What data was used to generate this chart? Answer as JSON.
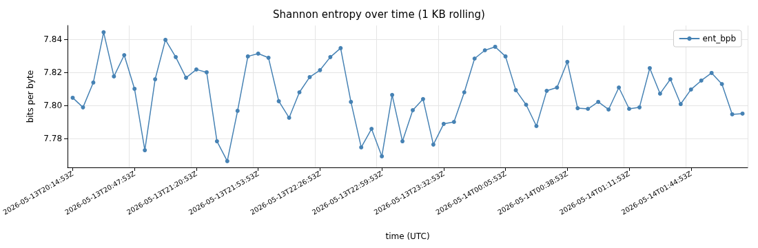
{
  "chart_data": {
    "type": "line",
    "title": "Shannon entropy over time (1 KB rolling)",
    "xlabel": "time (UTC)",
    "ylabel": "bits per byte",
    "categories": [
      "2026-05-13T20:14:53Z",
      null,
      null,
      null,
      null,
      null,
      "2026-05-13T20:47:53Z",
      null,
      null,
      null,
      null,
      null,
      "2026-05-13T21:20:53Z",
      null,
      null,
      null,
      null,
      null,
      "2026-05-13T21:53:53Z",
      null,
      null,
      null,
      null,
      null,
      "2026-05-13T22:26:53Z",
      null,
      null,
      null,
      null,
      null,
      "2026-05-13T22:59:53Z",
      null,
      null,
      null,
      null,
      null,
      "2026-05-13T23:32:53Z",
      null,
      null,
      null,
      null,
      null,
      "2026-05-14T00:05:53Z",
      null,
      null,
      null,
      null,
      null,
      "2026-05-14T00:38:53Z",
      null,
      null,
      null,
      null,
      null,
      "2026-05-14T01:11:53Z",
      null,
      null,
      null,
      null,
      null,
      "2026-05-14T01:44:53Z",
      null,
      null,
      null,
      null,
      null
    ],
    "series": [
      {
        "name": "ent_bpb",
        "color": "#4682b4",
        "values": [
          7.8046,
          7.7988,
          7.8138,
          7.8442,
          7.8175,
          7.8304,
          7.81,
          7.7729,
          7.8158,
          7.8396,
          7.8292,
          7.8167,
          7.8217,
          7.82,
          7.7783,
          7.7663,
          7.7967,
          7.8296,
          7.8313,
          7.8288,
          7.8025,
          7.7925,
          7.8079,
          7.8171,
          7.8213,
          7.8292,
          7.8346,
          7.8021,
          7.7746,
          7.7858,
          7.7692,
          7.8063,
          7.7783,
          7.7971,
          7.8038,
          7.7763,
          7.7888,
          7.79,
          7.8079,
          7.8283,
          7.8333,
          7.8354,
          7.8296,
          7.8092,
          7.8004,
          7.7875,
          7.8088,
          7.8108,
          7.8263,
          7.7983,
          7.7979,
          7.8021,
          7.7975,
          7.8108,
          7.7979,
          7.7988,
          7.8225,
          7.8071,
          7.8158,
          7.8008,
          7.8096,
          7.815,
          7.8196,
          7.8129,
          7.7946,
          7.795
        ]
      }
    ],
    "ylim": [
      7.7625,
      7.8483
    ],
    "yticks": [
      7.78,
      {
        "value": 7.8,
        "label": "7.80"
      },
      7.82,
      7.84
    ],
    "grid": true,
    "legend": "top right",
    "marker": "circle",
    "line_style": "solid"
  }
}
